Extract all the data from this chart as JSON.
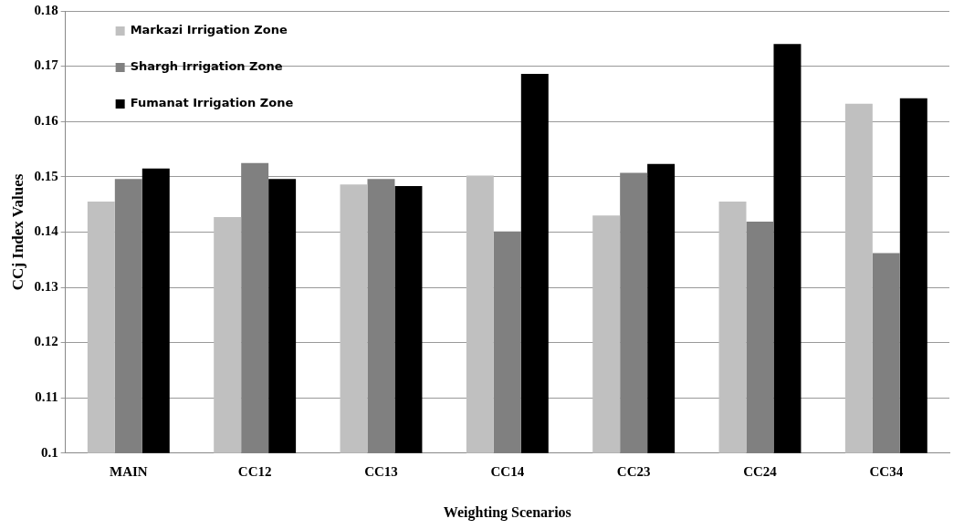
{
  "chart_data": {
    "type": "bar",
    "xlabel": "Weighting Scenarios",
    "ylabel": "CCj Index Values",
    "categories": [
      "MAIN",
      "CC12",
      "CC13",
      "CC14",
      "CC23",
      "CC24",
      "CC34"
    ],
    "series": [
      {
        "name": "Markazi Irrigation Zone",
        "color": "#c0c0c0",
        "values": [
          0.1455,
          0.1427,
          0.1486,
          0.1502,
          0.143,
          0.1455,
          0.1632
        ]
      },
      {
        "name": "Shargh Irrigation Zone",
        "color": "#808080",
        "values": [
          0.1496,
          0.1525,
          0.1496,
          0.1401,
          0.1507,
          0.1419,
          0.1362
        ]
      },
      {
        "name": "Fumanat Irrigation Zone",
        "color": "#000000",
        "values": [
          0.1515,
          0.1496,
          0.1483,
          0.1686,
          0.1523,
          0.174,
          0.1642
        ]
      }
    ],
    "ylim": [
      0.1,
      0.18
    ],
    "yticks": [
      0.1,
      0.11,
      0.12,
      0.13,
      0.14,
      0.15,
      0.16,
      0.17,
      0.18
    ],
    "grid": "y",
    "legend": "top left"
  }
}
